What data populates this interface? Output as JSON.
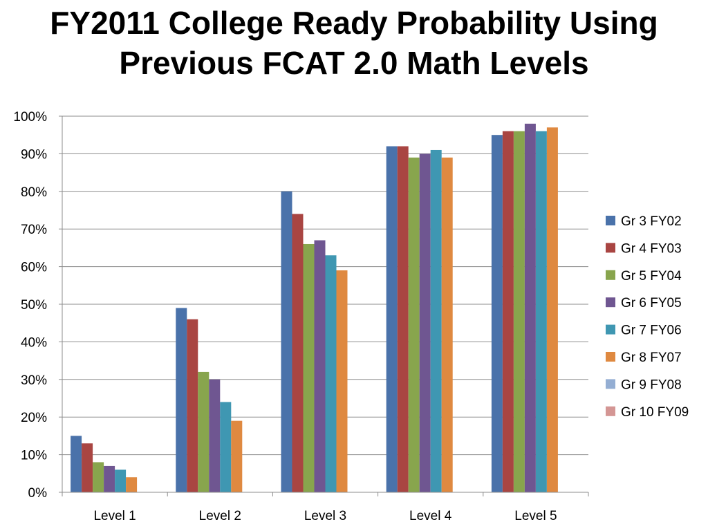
{
  "title_line1": "FY2011 College Ready Probability Using",
  "title_line2": "Previous FCAT 2.0 Math Levels",
  "chart_data": {
    "type": "bar",
    "categories": [
      "Level 1",
      "Level 2",
      "Level 3",
      "Level 4",
      "Level 5"
    ],
    "ylim": [
      0,
      100
    ],
    "yticks": [
      "0%",
      "10%",
      "20%",
      "30%",
      "40%",
      "50%",
      "60%",
      "70%",
      "80%",
      "90%",
      "100%"
    ],
    "grid": true,
    "legend_position": "right",
    "series": [
      {
        "name": "Gr 3 FY02",
        "color": "#4a72aa",
        "values": [
          15,
          49,
          80,
          92,
          95
        ]
      },
      {
        "name": "Gr 4 FY03",
        "color": "#a94542",
        "values": [
          13,
          46,
          74,
          92,
          96
        ]
      },
      {
        "name": "Gr 5 FY04",
        "color": "#88a54d",
        "values": [
          8,
          32,
          66,
          89,
          96
        ]
      },
      {
        "name": "Gr 6 FY05",
        "color": "#6f5691",
        "values": [
          7,
          30,
          67,
          90,
          98
        ]
      },
      {
        "name": "Gr 7 FY06",
        "color": "#3f97b2",
        "values": [
          6,
          24,
          63,
          91,
          96
        ]
      },
      {
        "name": "Gr 8 FY07",
        "color": "#df8940",
        "values": [
          4,
          19,
          59,
          89,
          97
        ]
      },
      {
        "name": "Gr 9 FY08",
        "color": "#94aed3",
        "values": [
          null,
          null,
          null,
          null,
          null
        ]
      },
      {
        "name": "Gr 10 FY09",
        "color": "#d49694",
        "values": [
          null,
          null,
          null,
          null,
          null
        ]
      }
    ]
  }
}
